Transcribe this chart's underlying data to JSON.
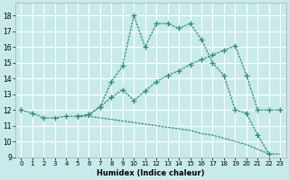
{
  "xlabel": "Humidex (Indice chaleur)",
  "background_color": "#c8eaea",
  "grid_color": "#ffffff",
  "line_color": "#2e8b74",
  "xlim": [
    -0.5,
    23.5
  ],
  "ylim": [
    9.0,
    18.8
  ],
  "yticks": [
    9,
    10,
    11,
    12,
    13,
    14,
    15,
    16,
    17,
    18
  ],
  "xticks": [
    0,
    1,
    2,
    3,
    4,
    5,
    6,
    7,
    8,
    9,
    10,
    11,
    12,
    13,
    14,
    15,
    16,
    17,
    18,
    19,
    20,
    21,
    22,
    23
  ],
  "line1_x": [
    0,
    1,
    2,
    3,
    4,
    5,
    6,
    7,
    8,
    9,
    10,
    11,
    12,
    13,
    14,
    15,
    16,
    17,
    18,
    19,
    20,
    21,
    22
  ],
  "line1_y": [
    12.0,
    11.8,
    11.5,
    11.5,
    11.6,
    11.6,
    11.7,
    12.2,
    13.8,
    14.8,
    18.0,
    16.0,
    17.5,
    17.5,
    17.2,
    17.5,
    16.5,
    15.0,
    14.2,
    12.0,
    11.8,
    10.4,
    9.2
  ],
  "line2_x": [
    5,
    6,
    7,
    8,
    9,
    10,
    11,
    12,
    13,
    14,
    15,
    16,
    17,
    18,
    19,
    20,
    21,
    22,
    23
  ],
  "line2_y": [
    11.6,
    11.7,
    12.2,
    12.8,
    13.3,
    12.6,
    13.2,
    13.8,
    14.2,
    14.5,
    14.9,
    15.2,
    15.5,
    15.8,
    16.1,
    14.2,
    12.0,
    12.0,
    12.0
  ],
  "line3_x": [
    5,
    6,
    7,
    8,
    9,
    10,
    11,
    12,
    13,
    14,
    15,
    16,
    17,
    18,
    19,
    20,
    21,
    22,
    23
  ],
  "line3_y": [
    11.6,
    11.6,
    11.5,
    11.4,
    11.3,
    11.2,
    11.1,
    11.0,
    10.9,
    10.8,
    10.7,
    10.5,
    10.4,
    10.2,
    10.0,
    9.8,
    9.5,
    9.2,
    9.2
  ]
}
